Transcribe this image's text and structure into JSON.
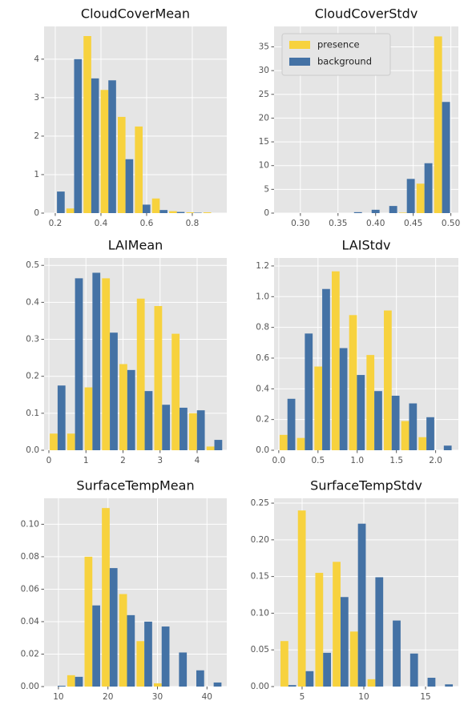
{
  "chart_data": [
    {
      "type": "histogram",
      "title": "CloudCoverMean",
      "bins": [
        0.17,
        0.245,
        0.32,
        0.395,
        0.47,
        0.545,
        0.62,
        0.695,
        0.77,
        0.845,
        0.92
      ],
      "series": [
        {
          "color": "#f7d23e",
          "values": [
            0,
            0.12,
            4.6,
            3.2,
            2.5,
            2.25,
            0.38,
            0.05,
            0.02,
            0.02
          ]
        },
        {
          "color": "#4472a5",
          "values": [
            0.56,
            4.0,
            3.5,
            3.45,
            1.4,
            0.22,
            0.08,
            0.03,
            0.01,
            0
          ]
        }
      ],
      "xlim": [
        0.151,
        0.951
      ],
      "ylim": [
        0,
        4.85
      ],
      "xticks": [
        0.2,
        0.4,
        0.6,
        0.8
      ],
      "yticks": [
        0,
        1,
        2,
        3,
        4
      ],
      "grid": true
    },
    {
      "type": "histogram",
      "title": "CloudCoverStdv",
      "bins": [
        0.266,
        0.2894,
        0.3128,
        0.3362,
        0.3596,
        0.383,
        0.4064,
        0.4298,
        0.4532,
        0.4766,
        0.5
      ],
      "series": [
        {
          "name": "presence",
          "color": "#f7d23e",
          "values": [
            0,
            0,
            0,
            0,
            0,
            0,
            0,
            0.1,
            6.2,
            37.2
          ]
        },
        {
          "name": "background",
          "color": "#4472a5",
          "values": [
            0,
            0,
            0,
            0,
            0.2,
            0.7,
            1.5,
            7.2,
            10.5,
            23.4
          ]
        }
      ],
      "xlim": [
        0.265,
        0.51
      ],
      "ylim": [
        0,
        39.3
      ],
      "xticks": [
        {
          "value": 0.3,
          "label": "0.30"
        },
        0.35,
        {
          "value": 0.4,
          "label": "0.40"
        },
        0.45,
        {
          "value": 0.5,
          "label": "0.50"
        }
      ],
      "yticks": [
        0,
        5,
        10,
        15,
        20,
        25,
        30,
        35
      ],
      "grid": true,
      "legend": "upper left"
    },
    {
      "type": "histogram",
      "title": "LAIMean",
      "bins": [
        0,
        0.47,
        0.94,
        1.41,
        1.88,
        2.35,
        2.82,
        3.29,
        3.76,
        4.23,
        4.7
      ],
      "series": [
        {
          "color": "#f7d23e",
          "values": [
            0.045,
            0.045,
            0.17,
            0.465,
            0.233,
            0.41,
            0.39,
            0.315,
            0.1,
            0.01
          ]
        },
        {
          "color": "#4472a5",
          "values": [
            0.175,
            0.465,
            0.48,
            0.318,
            0.217,
            0.16,
            0.123,
            0.115,
            0.108,
            0.028
          ]
        }
      ],
      "xlim": [
        -0.13,
        4.8
      ],
      "ylim": [
        0,
        0.52
      ],
      "xticks": [
        0,
        1,
        2,
        3,
        4
      ],
      "yticks": [
        {
          "value": 0,
          "label": "0.0"
        },
        0.1,
        0.2,
        0.3,
        0.4,
        0.5
      ],
      "grid": true
    },
    {
      "type": "histogram",
      "title": "LAIStdv",
      "bins": [
        0,
        0.2215,
        0.443,
        0.6645,
        0.886,
        1.1075,
        1.329,
        1.5505,
        1.772,
        1.9935,
        2.215
      ],
      "series": [
        {
          "color": "#f7d23e",
          "values": [
            0.1,
            0.08,
            0.545,
            1.165,
            0.88,
            0.62,
            0.91,
            0.19,
            0.085,
            0
          ]
        },
        {
          "color": "#4472a5",
          "values": [
            0.335,
            0.76,
            1.05,
            0.665,
            0.49,
            0.385,
            0.355,
            0.305,
            0.215,
            0.03
          ]
        }
      ],
      "xlim": [
        -0.06,
        2.29
      ],
      "ylim": [
        0,
        1.252
      ],
      "xticks": [
        {
          "value": 0,
          "label": "0.0"
        },
        0.5,
        {
          "value": 1,
          "label": "1.0"
        },
        1.5,
        {
          "value": 2,
          "label": "2.0"
        }
      ],
      "yticks": [
        {
          "value": 0,
          "label": "0.0"
        },
        0.2,
        0.4,
        0.6,
        0.8,
        {
          "value": 1,
          "label": "1.0"
        },
        1.2
      ],
      "grid": true
    },
    {
      "type": "histogram",
      "title": "SurfaceTempMean",
      "bins": [
        8.1,
        11.6,
        15.1,
        18.6,
        22.1,
        25.6,
        29.1,
        32.6,
        36.1,
        39.6,
        43.1
      ],
      "series": [
        {
          "color": "#f7d23e",
          "values": [
            0,
            0.007,
            0.08,
            0.11,
            0.057,
            0.028,
            0.002,
            0,
            0,
            0
          ]
        },
        {
          "color": "#4472a5",
          "values": [
            0.0005,
            0.006,
            0.05,
            0.073,
            0.044,
            0.04,
            0.037,
            0.021,
            0.01,
            0.0025
          ]
        }
      ],
      "xlim": [
        7.1,
        44.0
      ],
      "ylim": [
        0,
        0.116
      ],
      "xticks": [
        10,
        20,
        30,
        40
      ],
      "yticks": [
        {
          "value": 0,
          "label": "0.00"
        },
        0.02,
        0.04,
        0.06,
        0.08,
        {
          "value": 0.1,
          "label": "0.10"
        }
      ],
      "grid": true
    },
    {
      "type": "histogram",
      "title": "SurfaceTempStdv",
      "bins": [
        3.18,
        4.59,
        6.0,
        7.41,
        8.82,
        10.23,
        11.64,
        13.05,
        14.46,
        15.87,
        17.28
      ],
      "series": [
        {
          "color": "#f7d23e",
          "values": [
            0.062,
            0.24,
            0.155,
            0.17,
            0.075,
            0.01,
            0,
            0,
            0,
            0
          ]
        },
        {
          "color": "#4472a5",
          "values": [
            0.002,
            0.021,
            0.046,
            0.122,
            0.222,
            0.149,
            0.09,
            0.045,
            0.012,
            0.003
          ]
        }
      ],
      "xlim": [
        2.73,
        17.66
      ],
      "ylim": [
        0,
        0.2566
      ],
      "xticks": [
        5,
        10,
        15
      ],
      "yticks": [
        {
          "value": 0,
          "label": "0.00"
        },
        0.05,
        {
          "value": 0.1,
          "label": "0.10"
        },
        0.15,
        {
          "value": 0.2,
          "label": "0.20"
        },
        0.25
      ],
      "grid": true
    }
  ]
}
